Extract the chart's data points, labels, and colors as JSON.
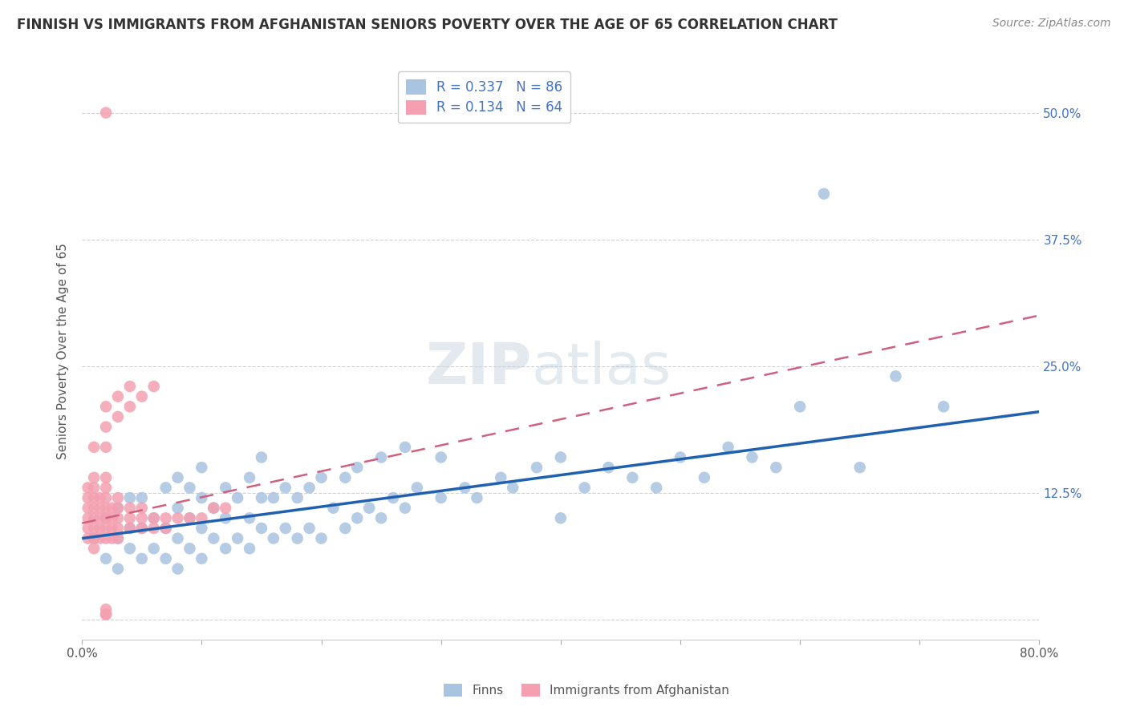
{
  "title": "FINNISH VS IMMIGRANTS FROM AFGHANISTAN SENIORS POVERTY OVER THE AGE OF 65 CORRELATION CHART",
  "source": "Source: ZipAtlas.com",
  "ylabel": "Seniors Poverty Over the Age of 65",
  "xlabel": "",
  "xlim": [
    0.0,
    0.8
  ],
  "ylim": [
    -0.02,
    0.55
  ],
  "xtick_positions": [
    0.0,
    0.1,
    0.2,
    0.3,
    0.4,
    0.5,
    0.6,
    0.7,
    0.8
  ],
  "xticklabels": [
    "0.0%",
    "",
    "",
    "",
    "",
    "",
    "",
    "",
    "80.0%"
  ],
  "ytick_positions": [
    0.0,
    0.125,
    0.25,
    0.375,
    0.5
  ],
  "ytick_labels": [
    "",
    "12.5%",
    "25.0%",
    "37.5%",
    "50.0%"
  ],
  "finn_R": 0.337,
  "finn_N": 86,
  "afghan_R": 0.134,
  "afghan_N": 64,
  "finn_color": "#a8c4e0",
  "afghan_color": "#f4a0b0",
  "finn_line_color": "#2060b0",
  "afghan_line_color": "#d06080",
  "background_color": "#ffffff",
  "grid_color": "#cccccc",
  "finn_line_x0": 0.0,
  "finn_line_y0": 0.08,
  "finn_line_x1": 0.8,
  "finn_line_y1": 0.205,
  "afghan_line_x0": 0.0,
  "afghan_line_y0": 0.095,
  "afghan_line_x1": 0.8,
  "afghan_line_y1": 0.3,
  "finn_scatter_x": [
    0.01,
    0.02,
    0.02,
    0.03,
    0.03,
    0.03,
    0.04,
    0.04,
    0.04,
    0.05,
    0.05,
    0.05,
    0.06,
    0.06,
    0.07,
    0.07,
    0.07,
    0.08,
    0.08,
    0.08,
    0.08,
    0.09,
    0.09,
    0.09,
    0.1,
    0.1,
    0.1,
    0.1,
    0.11,
    0.11,
    0.12,
    0.12,
    0.12,
    0.13,
    0.13,
    0.14,
    0.14,
    0.14,
    0.15,
    0.15,
    0.15,
    0.16,
    0.16,
    0.17,
    0.17,
    0.18,
    0.18,
    0.19,
    0.19,
    0.2,
    0.2,
    0.21,
    0.22,
    0.22,
    0.23,
    0.23,
    0.24,
    0.25,
    0.25,
    0.26,
    0.27,
    0.27,
    0.28,
    0.3,
    0.3,
    0.32,
    0.33,
    0.35,
    0.36,
    0.38,
    0.4,
    0.4,
    0.42,
    0.44,
    0.46,
    0.48,
    0.5,
    0.52,
    0.54,
    0.56,
    0.58,
    0.6,
    0.62,
    0.65,
    0.68,
    0.72
  ],
  "finn_scatter_y": [
    0.08,
    0.06,
    0.1,
    0.05,
    0.08,
    0.11,
    0.07,
    0.09,
    0.12,
    0.06,
    0.09,
    0.12,
    0.07,
    0.1,
    0.06,
    0.09,
    0.13,
    0.05,
    0.08,
    0.11,
    0.14,
    0.07,
    0.1,
    0.13,
    0.06,
    0.09,
    0.12,
    0.15,
    0.08,
    0.11,
    0.07,
    0.1,
    0.13,
    0.08,
    0.12,
    0.07,
    0.1,
    0.14,
    0.09,
    0.12,
    0.16,
    0.08,
    0.12,
    0.09,
    0.13,
    0.08,
    0.12,
    0.09,
    0.13,
    0.08,
    0.14,
    0.11,
    0.09,
    0.14,
    0.1,
    0.15,
    0.11,
    0.1,
    0.16,
    0.12,
    0.11,
    0.17,
    0.13,
    0.12,
    0.16,
    0.13,
    0.12,
    0.14,
    0.13,
    0.15,
    0.1,
    0.16,
    0.13,
    0.15,
    0.14,
    0.13,
    0.16,
    0.14,
    0.17,
    0.16,
    0.15,
    0.21,
    0.42,
    0.15,
    0.24,
    0.21
  ],
  "afghan_scatter_x": [
    0.005,
    0.005,
    0.005,
    0.005,
    0.005,
    0.005,
    0.01,
    0.01,
    0.01,
    0.01,
    0.01,
    0.01,
    0.01,
    0.01,
    0.015,
    0.015,
    0.015,
    0.015,
    0.015,
    0.02,
    0.02,
    0.02,
    0.02,
    0.02,
    0.02,
    0.02,
    0.025,
    0.025,
    0.025,
    0.025,
    0.03,
    0.03,
    0.03,
    0.03,
    0.03,
    0.04,
    0.04,
    0.04,
    0.05,
    0.05,
    0.05,
    0.06,
    0.06,
    0.07,
    0.07,
    0.08,
    0.09,
    0.1,
    0.11,
    0.12,
    0.01,
    0.02,
    0.02,
    0.02,
    0.03,
    0.03,
    0.04,
    0.04,
    0.05,
    0.06,
    0.02,
    0.02,
    0.02,
    0.02
  ],
  "afghan_scatter_y": [
    0.08,
    0.09,
    0.1,
    0.11,
    0.12,
    0.13,
    0.07,
    0.08,
    0.09,
    0.1,
    0.11,
    0.12,
    0.13,
    0.14,
    0.08,
    0.09,
    0.1,
    0.11,
    0.12,
    0.08,
    0.09,
    0.1,
    0.11,
    0.12,
    0.13,
    0.14,
    0.08,
    0.09,
    0.1,
    0.11,
    0.08,
    0.09,
    0.1,
    0.11,
    0.12,
    0.09,
    0.1,
    0.11,
    0.09,
    0.1,
    0.11,
    0.09,
    0.1,
    0.09,
    0.1,
    0.1,
    0.1,
    0.1,
    0.11,
    0.11,
    0.17,
    0.17,
    0.19,
    0.21,
    0.2,
    0.22,
    0.21,
    0.23,
    0.22,
    0.23,
    0.01,
    0.5,
    0.005,
    0.005
  ]
}
